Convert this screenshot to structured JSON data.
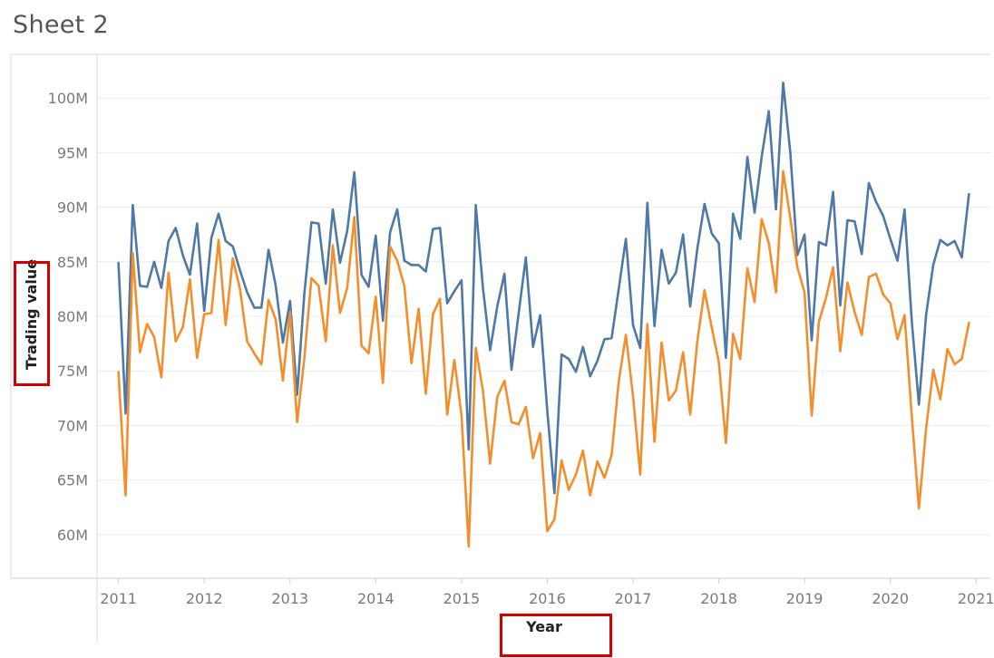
{
  "sheet": {
    "title": "Sheet 2"
  },
  "colors": {
    "series_1": "#4e79a7",
    "series_2": "#f28e2b",
    "highlight": "#d40000",
    "gridline": "#ececec"
  },
  "chart_data": {
    "type": "line",
    "xlabel": "Year",
    "ylabel": "Trading value",
    "xlim": [
      "2010-10",
      "2021-03"
    ],
    "ylim": [
      56,
      104
    ],
    "y_unit": "M",
    "y_ticks": [
      60,
      65,
      70,
      75,
      80,
      85,
      90,
      95,
      100
    ],
    "y_tick_labels": [
      "60M",
      "65M",
      "70M",
      "75M",
      "80M",
      "85M",
      "90M",
      "95M",
      "100M"
    ],
    "x_ticks": [
      "2011",
      "2012",
      "2013",
      "2014",
      "2015",
      "2016",
      "2017",
      "2018",
      "2019",
      "2020",
      "2021"
    ],
    "grid": true,
    "legend": "none",
    "x": [
      "2011-01",
      "2011-02",
      "2011-03",
      "2011-04",
      "2011-05",
      "2011-06",
      "2011-07",
      "2011-08",
      "2011-09",
      "2011-10",
      "2011-11",
      "2011-12",
      "2012-01",
      "2012-02",
      "2012-03",
      "2012-04",
      "2012-05",
      "2012-06",
      "2012-07",
      "2012-08",
      "2012-09",
      "2012-10",
      "2012-11",
      "2012-12",
      "2013-01",
      "2013-02",
      "2013-03",
      "2013-04",
      "2013-05",
      "2013-06",
      "2013-07",
      "2013-08",
      "2013-09",
      "2013-10",
      "2013-11",
      "2013-12",
      "2014-01",
      "2014-02",
      "2014-03",
      "2014-04",
      "2014-05",
      "2014-06",
      "2014-07",
      "2014-08",
      "2014-09",
      "2014-10",
      "2014-11",
      "2014-12",
      "2015-01",
      "2015-02",
      "2015-03",
      "2015-04",
      "2015-05",
      "2015-06",
      "2015-07",
      "2015-08",
      "2015-09",
      "2015-10",
      "2015-11",
      "2015-12",
      "2016-01",
      "2016-02",
      "2016-03",
      "2016-04",
      "2016-05",
      "2016-06",
      "2016-07",
      "2016-08",
      "2016-09",
      "2016-10",
      "2016-11",
      "2016-12",
      "2017-01",
      "2017-02",
      "2017-03",
      "2017-04",
      "2017-05",
      "2017-06",
      "2017-07",
      "2017-08",
      "2017-09",
      "2017-10",
      "2017-11",
      "2017-12",
      "2018-01",
      "2018-02",
      "2018-03",
      "2018-04",
      "2018-05",
      "2018-06",
      "2018-07",
      "2018-08",
      "2018-09",
      "2018-10",
      "2018-11",
      "2018-12",
      "2019-01",
      "2019-02",
      "2019-03",
      "2019-04",
      "2019-05",
      "2019-06",
      "2019-07",
      "2019-08",
      "2019-09",
      "2019-10",
      "2019-11",
      "2019-12",
      "2020-01",
      "2020-02",
      "2020-03",
      "2020-04",
      "2020-05",
      "2020-06",
      "2020-07",
      "2020-08",
      "2020-09",
      "2020-10",
      "2020-11",
      "2020-12"
    ],
    "series": [
      {
        "values": [
          84.9,
          71.1,
          90.2,
          82.8,
          82.7,
          85.0,
          82.6,
          86.9,
          88.1,
          85.6,
          83.8,
          88.5,
          80.5,
          87.2,
          89.4,
          86.9,
          86.4,
          84.2,
          82.2,
          80.8,
          80.8,
          86.1,
          82.8,
          77.6,
          81.4,
          72.8,
          82.0,
          88.6,
          88.5,
          83.0,
          89.8,
          84.9,
          87.8,
          93.2,
          83.8,
          82.7,
          87.4,
          79.6,
          87.7,
          89.8,
          85.1,
          84.7,
          84.7,
          84.1,
          88.0,
          88.1,
          81.2,
          82.3,
          83.3,
          67.8,
          90.2,
          82.6,
          76.9,
          80.9,
          83.9,
          75.1,
          80.3,
          85.4,
          77.2,
          80.1,
          71.4,
          63.8,
          76.5,
          76.1,
          74.9,
          77.2,
          74.5,
          75.9,
          77.9,
          78.0,
          82.5,
          87.1,
          79.2,
          77.1,
          90.4,
          79.1,
          86.1,
          83.0,
          84.0,
          87.5,
          80.9,
          86.2,
          90.3,
          87.6,
          86.7,
          76.2,
          89.4,
          87.1,
          94.6,
          89.5,
          94.6,
          98.8,
          89.8,
          101.4,
          95.0,
          85.6,
          87.5,
          77.8,
          86.8,
          86.5,
          91.4,
          81.0,
          88.8,
          88.7,
          85.7,
          92.2,
          90.5,
          89.2,
          87.1,
          85.1,
          89.8,
          79.6,
          71.9,
          80.1,
          84.7,
          87.0,
          86.5,
          86.9,
          85.4,
          91.2
        ]
      },
      {
        "values": [
          74.9,
          63.6,
          85.8,
          76.7,
          79.3,
          78.1,
          74.4,
          84.0,
          77.7,
          79.0,
          83.4,
          76.2,
          80.2,
          80.3,
          87.0,
          79.2,
          85.3,
          82.5,
          77.7,
          76.6,
          75.6,
          81.5,
          79.7,
          74.1,
          80.4,
          70.3,
          76.1,
          83.5,
          82.8,
          77.7,
          86.5,
          80.3,
          82.6,
          89.1,
          77.3,
          76.6,
          81.8,
          73.9,
          86.4,
          85.1,
          82.8,
          75.7,
          80.7,
          72.9,
          80.2,
          81.6,
          71.0,
          76.0,
          70.9,
          58.9,
          77.1,
          73.2,
          66.5,
          72.6,
          74.1,
          70.3,
          70.1,
          71.7,
          67.0,
          69.3,
          60.3,
          61.4,
          66.8,
          64.1,
          65.5,
          67.7,
          63.6,
          66.7,
          65.2,
          67.3,
          74.0,
          78.3,
          72.7,
          65.5,
          79.3,
          68.5,
          77.6,
          72.3,
          73.2,
          76.7,
          71.0,
          77.7,
          82.4,
          79.0,
          75.8,
          68.4,
          78.4,
          76.1,
          84.4,
          81.3,
          88.9,
          86.7,
          82.2,
          93.3,
          89.0,
          84.5,
          82.2,
          70.9,
          79.5,
          81.7,
          84.5,
          76.8,
          83.1,
          80.4,
          78.3,
          83.6,
          83.9,
          82.0,
          81.2,
          77.9,
          80.1,
          70.9,
          62.4,
          69.7,
          75.1,
          72.4,
          77.0,
          75.6,
          76.1,
          79.4
        ]
      }
    ]
  }
}
